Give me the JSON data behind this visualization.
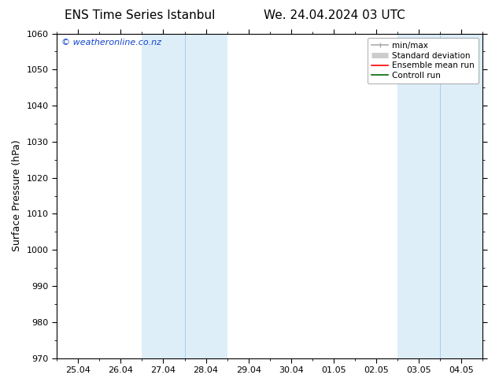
{
  "title_left": "ENS Time Series Istanbul",
  "title_right": "We. 24.04.2024 03 UTC",
  "ylabel": "Surface Pressure (hPa)",
  "watermark": "© weatheronline.co.nz",
  "ylim": [
    970,
    1060
  ],
  "yticks": [
    970,
    980,
    990,
    1000,
    1010,
    1020,
    1030,
    1040,
    1050,
    1060
  ],
  "xtick_labels": [
    "25.04",
    "26.04",
    "27.04",
    "28.04",
    "29.04",
    "30.04",
    "01.05",
    "02.05",
    "03.05",
    "04.05"
  ],
  "xtick_positions": [
    0,
    1,
    2,
    3,
    4,
    5,
    6,
    7,
    8,
    9
  ],
  "xlim": [
    -0.5,
    9.5
  ],
  "shade_bands": [
    {
      "xmin": 1.5,
      "xmax": 3.5
    },
    {
      "xmin": 7.5,
      "xmax": 9.5
    }
  ],
  "shade_dividers": [
    2.5,
    8.5
  ],
  "shade_color": "#ddeef8",
  "shade_divider_color": "#aaccee",
  "bg_color": "#ffffff",
  "legend_entries": [
    {
      "label": "min/max",
      "color": "#aaaaaa",
      "lw": 1.2,
      "style": "minmax"
    },
    {
      "label": "Standard deviation",
      "color": "#cccccc",
      "lw": 5,
      "style": "thick"
    },
    {
      "label": "Ensemble mean run",
      "color": "#ff0000",
      "lw": 1.2,
      "style": "line"
    },
    {
      "label": "Controll run",
      "color": "#006600",
      "lw": 1.2,
      "style": "line"
    }
  ],
  "tick_color": "#000000",
  "title_fontsize": 11,
  "label_fontsize": 9,
  "tick_fontsize": 8,
  "watermark_fontsize": 8,
  "watermark_color": "#1144cc",
  "legend_fontsize": 7.5,
  "spine_color": "#000000"
}
